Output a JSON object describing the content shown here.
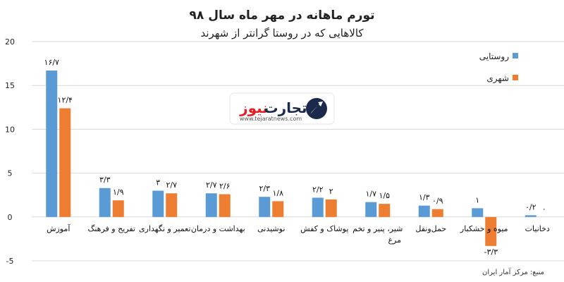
{
  "logo": {
    "name_part1": "تجارت",
    "name_part2": "نیوز",
    "url": "www.tejaratnews.com",
    "colors": {
      "dark": "#1b2a4a",
      "accent": "#e31e24"
    }
  },
  "source": "منبع: مرکز آمار ایران",
  "colors": {
    "rural": "#5b9bd5",
    "urban": "#ed7d31"
  },
  "chart_data": {
    "type": "bar",
    "title": "تورم ماهانه در مهر ماه سال ۹۸",
    "subtitle": "کالاهایی که در روستا گرانتر از شهرند",
    "categories": [
      "آموزش",
      "تفریح و فرهنگ",
      "تعمیر و نگهداری",
      "بهداشت و درمان",
      "نوشیدنی",
      "پوشاک و کفش",
      "شیر، پنیر و تخم مرغ",
      "حمل‌ونقل",
      "میوه و خشکبار",
      "دخانیات"
    ],
    "series": [
      {
        "name": "روستایی",
        "values": [
          16.7,
          3.3,
          3,
          2.7,
          2.3,
          2.2,
          1.7,
          1.3,
          1,
          0.2
        ],
        "labels": [
          "۱۶/۷",
          "۳/۳",
          "۳",
          "۲/۷",
          "۲/۳",
          "۲/۲",
          "۱/۷",
          "۱/۳",
          "۱",
          "۰/۲"
        ]
      },
      {
        "name": "شهری",
        "values": [
          12.4,
          1.9,
          2.7,
          2.6,
          1.8,
          2,
          1.5,
          0.9,
          -3.3,
          0
        ],
        "labels": [
          "۱۲/۴",
          "۱/۹",
          "۲/۷",
          "۲/۶",
          "۱/۸",
          "۲",
          "۱/۵",
          "۰/۹",
          "-۳/۳",
          "۰"
        ]
      }
    ],
    "ylim": [
      -5,
      20
    ],
    "yticks": [
      20,
      15,
      10,
      5,
      0,
      -5
    ],
    "ytick_labels": [
      "20",
      "15",
      "10",
      "5",
      "0",
      "-5"
    ],
    "grid": true,
    "legend": "top-right"
  }
}
